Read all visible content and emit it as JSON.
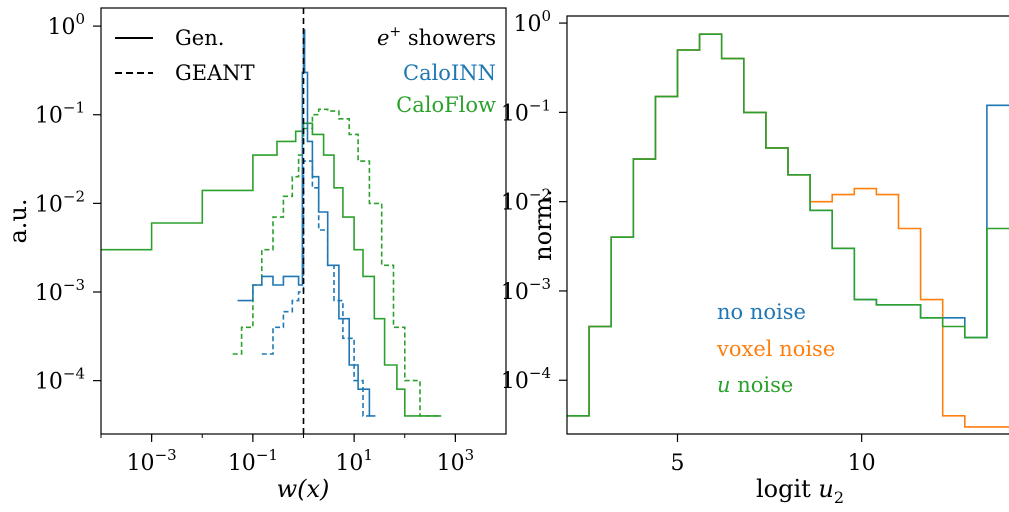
{
  "colors": {
    "caloinn": "#1f77b4",
    "caloflow": "#2ca02c",
    "voxel": "#ff7f0e",
    "black": "#000000"
  },
  "chart_data": [
    {
      "type": "line",
      "subtype": "step-histogram",
      "x_scale": "log",
      "y_scale": "log",
      "xlim": [
        0.0001,
        10000
      ],
      "ylim": [
        2.5e-05,
        1.6
      ],
      "xlabel": "w(x)",
      "ylabel": "a.u.",
      "x_ticks": [
        {
          "value": 0.001,
          "base": "10",
          "exp": "−3"
        },
        {
          "value": 0.1,
          "base": "10",
          "exp": "−1"
        },
        {
          "value": 10,
          "base": "10",
          "exp": "1"
        },
        {
          "value": 1000,
          "base": "10",
          "exp": "3"
        }
      ],
      "y_ticks": [
        {
          "value": 1,
          "base": "10",
          "exp": "0"
        },
        {
          "value": 0.1,
          "base": "10",
          "exp": "−1"
        },
        {
          "value": 0.01,
          "base": "10",
          "exp": "−2"
        },
        {
          "value": 0.001,
          "base": "10",
          "exp": "−3"
        },
        {
          "value": 0.0001,
          "base": "10",
          "exp": "−4"
        }
      ],
      "vline": 1,
      "legend_style": [
        {
          "label": "Gen.",
          "dash": false
        },
        {
          "label": "GEANT",
          "dash": true
        }
      ],
      "legend_series": {
        "title_base": "e",
        "title_sup": "+",
        "title_rest": " showers",
        "items": [
          {
            "label": "CaloINN",
            "color": "#1f77b4"
          },
          {
            "label": "CaloFlow",
            "color": "#2ca02c"
          }
        ]
      },
      "series": [
        {
          "name": "CaloFlow",
          "style": "solid",
          "color": "#2ca02c",
          "x": [
            0.0001,
            0.001,
            0.01,
            0.1,
            0.3,
            0.7,
            1.0,
            1.5,
            2.5,
            4,
            6,
            10,
            15,
            25,
            40,
            70,
            100,
            150,
            250,
            400
          ],
          "y": [
            0.003,
            0.006,
            0.014,
            0.035,
            0.05,
            0.065,
            0.08,
            0.06,
            0.035,
            0.015,
            0.007,
            0.003,
            0.0015,
            0.0005,
            0.00015,
            8e-05,
            4e-05,
            4e-05,
            4e-05,
            4e-05
          ]
        },
        {
          "name": "CaloFlow",
          "style": "dashed",
          "color": "#2ca02c",
          "x": [
            0.04,
            0.06,
            0.1,
            0.15,
            0.25,
            0.4,
            0.6,
            0.8,
            1.0,
            1.5,
            2.0,
            3.0,
            5.0,
            8.0,
            12,
            20,
            35,
            60,
            100,
            200,
            400
          ],
          "y": [
            0.0002,
            0.0004,
            0.0012,
            0.003,
            0.007,
            0.012,
            0.02,
            0.035,
            0.07,
            0.1,
            0.115,
            0.11,
            0.09,
            0.06,
            0.03,
            0.01,
            0.002,
            0.0004,
            0.0001,
            4e-05,
            4e-05
          ]
        },
        {
          "name": "CaloINN",
          "style": "solid",
          "color": "#1f77b4",
          "x": [
            0.05,
            0.1,
            0.15,
            0.25,
            0.4,
            0.6,
            0.8,
            0.95,
            1.0,
            1.05,
            1.2,
            1.5,
            2.0,
            3.0,
            5.0,
            8.0,
            12,
            20
          ],
          "y": [
            0.0008,
            0.0012,
            0.0015,
            0.0012,
            0.0015,
            0.0015,
            0.0012,
            0.3,
            0.9,
            0.3,
            0.05,
            0.02,
            0.008,
            0.002,
            0.0005,
            0.00015,
            8e-05,
            4e-05
          ]
        },
        {
          "name": "CaloINN",
          "style": "dashed",
          "color": "#1f77b4",
          "x": [
            0.15,
            0.25,
            0.4,
            0.6,
            0.8,
            1.0,
            1.5,
            2.0,
            3.0,
            4.0,
            6.0,
            10,
            15
          ],
          "y": [
            0.0002,
            0.0004,
            0.0006,
            0.0008,
            0.001,
            0.03,
            0.015,
            0.005,
            0.002,
            0.0008,
            0.0003,
            0.0001,
            4e-05
          ]
        }
      ]
    },
    {
      "type": "line",
      "subtype": "step-histogram",
      "x_scale": "linear",
      "y_scale": "log",
      "xlim": [
        2,
        14
      ],
      "ylim": [
        2.5e-05,
        1.2
      ],
      "xlabel_base": "logit ",
      "xlabel_var": "u",
      "xlabel_sub": "2",
      "ylabel": "norm.",
      "x_ticks": [
        {
          "value": 5,
          "label": "5"
        },
        {
          "value": 10,
          "label": "10"
        }
      ],
      "y_ticks": [
        {
          "value": 1,
          "base": "10",
          "exp": "0"
        },
        {
          "value": 0.1,
          "base": "10",
          "exp": "−1"
        },
        {
          "value": 0.01,
          "base": "10",
          "exp": "−2"
        },
        {
          "value": 0.001,
          "base": "10",
          "exp": "−3"
        },
        {
          "value": 0.0001,
          "base": "10",
          "exp": "−4"
        }
      ],
      "legend": [
        {
          "label": "no noise",
          "color": "#1f77b4"
        },
        {
          "label": "voxel noise",
          "color": "#ff7f0e"
        },
        {
          "label_var": "u",
          "label_rest": " noise",
          "color": "#2ca02c"
        }
      ],
      "bin_edges": [
        2,
        2.6,
        3.2,
        3.8,
        4.4,
        5.0,
        5.6,
        6.2,
        6.8,
        7.4,
        8.0,
        8.6,
        9.2,
        9.8,
        10.4,
        11.0,
        11.6,
        12.2,
        12.8,
        13.4,
        14
      ],
      "series": [
        {
          "name": "no noise",
          "color": "#1f77b4",
          "values": [
            4e-05,
            0.0004,
            0.004,
            0.03,
            0.15,
            0.5,
            0.75,
            0.4,
            0.1,
            0.04,
            0.02,
            0.008,
            0.003,
            0.0008,
            0.0007,
            0.0007,
            0.0005,
            0.0005,
            0.0003,
            0.12
          ]
        },
        {
          "name": "voxel noise",
          "color": "#ff7f0e",
          "values": [
            4e-05,
            0.0004,
            0.004,
            0.03,
            0.15,
            0.5,
            0.75,
            0.4,
            0.1,
            0.04,
            0.02,
            0.01,
            0.012,
            0.014,
            0.012,
            0.005,
            0.0008,
            4e-05,
            3e-05,
            3e-05
          ]
        },
        {
          "name": "u noise",
          "color": "#2ca02c",
          "values": [
            4e-05,
            0.0004,
            0.004,
            0.03,
            0.15,
            0.5,
            0.75,
            0.4,
            0.1,
            0.04,
            0.02,
            0.008,
            0.003,
            0.0008,
            0.0007,
            0.0007,
            0.0005,
            0.0004,
            0.0003,
            0.005
          ]
        }
      ]
    }
  ]
}
